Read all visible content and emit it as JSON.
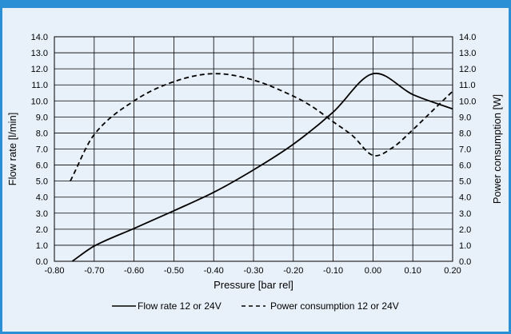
{
  "chart_data": {
    "type": "line",
    "x_axis": {
      "label": "Pressure [bar rel]",
      "range": [
        -0.8,
        0.2
      ],
      "ticks": [
        "-0.80",
        "-0.70",
        "-0.60",
        "-0.50",
        "-0.40",
        "-0.30",
        "-0.20",
        "-0.10",
        "0.00",
        "0.10",
        "0.20"
      ]
    },
    "y_axis_left": {
      "label": "Flow rate [l/min]",
      "range": [
        0,
        14
      ],
      "ticks": [
        "0.0",
        "1.0",
        "2.0",
        "3.0",
        "4.0",
        "5.0",
        "6.0",
        "7.0",
        "8.0",
        "9.0",
        "10.0",
        "11.0",
        "12.0",
        "13.0",
        "14.0"
      ]
    },
    "y_axis_right": {
      "label": "Power consumption [W]",
      "range": [
        0,
        14
      ],
      "ticks": [
        "0.0",
        "1.0",
        "2.0",
        "3.0",
        "4.0",
        "5.0",
        "6.0",
        "7.0",
        "8.0",
        "9.0",
        "10.0",
        "11.0",
        "12.0",
        "13.0",
        "14.0"
      ]
    },
    "grid": true,
    "legend_position": "bottom",
    "series": [
      {
        "name": "Flow rate 12 or 24V",
        "style": "solid",
        "axis": "left",
        "color": "#000000",
        "x": [
          -0.755,
          -0.7,
          -0.6,
          -0.5,
          -0.4,
          -0.3,
          -0.2,
          -0.1,
          0.0,
          0.1,
          0.2
        ],
        "y": [
          0.0,
          0.95,
          2.05,
          3.15,
          4.3,
          5.7,
          7.3,
          9.3,
          11.7,
          10.4,
          9.5
        ]
      },
      {
        "name": "Power consumption 12 or 24V",
        "style": "dashed",
        "axis": "right",
        "color": "#000000",
        "x": [
          -0.76,
          -0.7,
          -0.6,
          -0.5,
          -0.4,
          -0.3,
          -0.2,
          -0.15,
          -0.1,
          -0.05,
          0.0,
          0.05,
          0.1,
          0.15,
          0.2
        ],
        "y": [
          5.0,
          7.9,
          10.0,
          11.2,
          11.7,
          11.3,
          10.3,
          9.6,
          8.7,
          7.8,
          6.6,
          7.1,
          8.2,
          9.4,
          10.6
        ]
      }
    ]
  }
}
